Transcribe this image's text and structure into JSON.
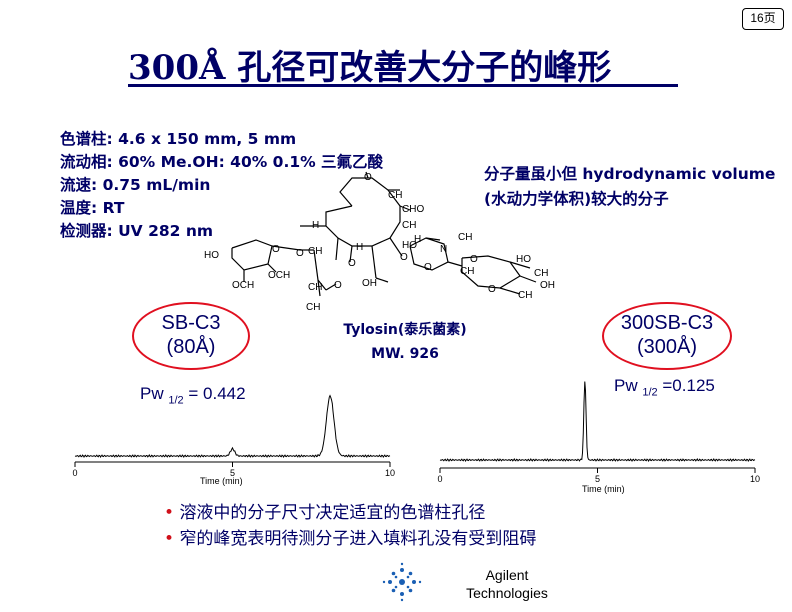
{
  "page_badge": "16页",
  "title": "300Å 孔径可改善大分子的峰形",
  "conditions": [
    "色谱柱: 4.6 x 150 mm,     5 mm",
    "流动相:  60% Me.OH: 40% 0.1% 三氟乙酸",
    "流速: 0.75 mL/min",
    "温度:  RT",
    "检测器:  UV 282 nm"
  ],
  "note_lines": [
    "分子量虽小但 hydrodynamic volume",
    "(水动力学体积)较大的分子"
  ],
  "compound": {
    "name": "Tylosin(泰乐菌素)",
    "mw": "MW. 926"
  },
  "structure_labels": {
    "o_top": "O",
    "ch3_top": "CH",
    "cho": "CHO",
    "ch2": "CH",
    "h3c_left": "H",
    "ch3_n": "CH",
    "h3c_n": "H",
    "n": "N",
    "ho_mid": "HO",
    "ho_left": "HO",
    "o_left": "O",
    "o_ring": "O",
    "ch_left": "CH",
    "h3c_mid": "H",
    "o_mid": "O",
    "och3_a": "OCH",
    "och3_b": "OCH",
    "ch2_b": "CH",
    "o_bottom": "O",
    "oh": "OH",
    "ch3_low": "CH",
    "o_sugar": "O",
    "ho_right": "HO",
    "ch3_right": "CH",
    "oh_right": "OH",
    "o_right": "O",
    "ch3_right_low": "CH",
    "ch3_bottom": "CH",
    "o_c": "O"
  },
  "left_panel": {
    "column_name": "SB-C3",
    "pore": "(80Å)",
    "pw_label": "Pw",
    "pw_sub": "1/2",
    "pw_value": " = 0.442",
    "axis_title": "Time (min)",
    "ticks": [
      "0",
      "5",
      "10"
    ]
  },
  "right_panel": {
    "column_name": "300SB-C3",
    "pore": "(300Å)",
    "pw_label": "Pw",
    "pw_sub": "1/2",
    "pw_value": " =0.125",
    "axis_title": "Time (min)",
    "ticks": [
      "0",
      "5",
      "10"
    ]
  },
  "bullets": [
    "溶液中的分子尺寸决定适宜的色谱柱孔径",
    "窄的峰宽表明待测分子进入填料孔没有受到阻碍"
  ],
  "footer": {
    "brand_line1": "Agilent",
    "brand_line2": "Technologies"
  },
  "colors": {
    "title": "#000066",
    "ring": "#e01020",
    "bullet_dot": "#d0101a",
    "logo": "#1a5fb4"
  },
  "chart_data": [
    {
      "type": "line",
      "title": "",
      "xlabel": "Time (min)",
      "ylabel": "",
      "xlim": [
        0,
        10
      ],
      "x_ticks": [
        0,
        5,
        10
      ],
      "series": [
        {
          "peaks": [
            {
              "x": 5.0,
              "height": 0.12
            },
            {
              "x": 8.1,
              "height": 1.0
            }
          ]
        }
      ]
    },
    {
      "type": "line",
      "title": "",
      "xlabel": "Time (min)",
      "ylabel": "",
      "xlim": [
        0,
        10
      ],
      "x_ticks": [
        0,
        5,
        10
      ],
      "series": [
        {
          "peaks": [
            {
              "x": 4.6,
              "height": 1.0
            }
          ]
        }
      ]
    }
  ]
}
